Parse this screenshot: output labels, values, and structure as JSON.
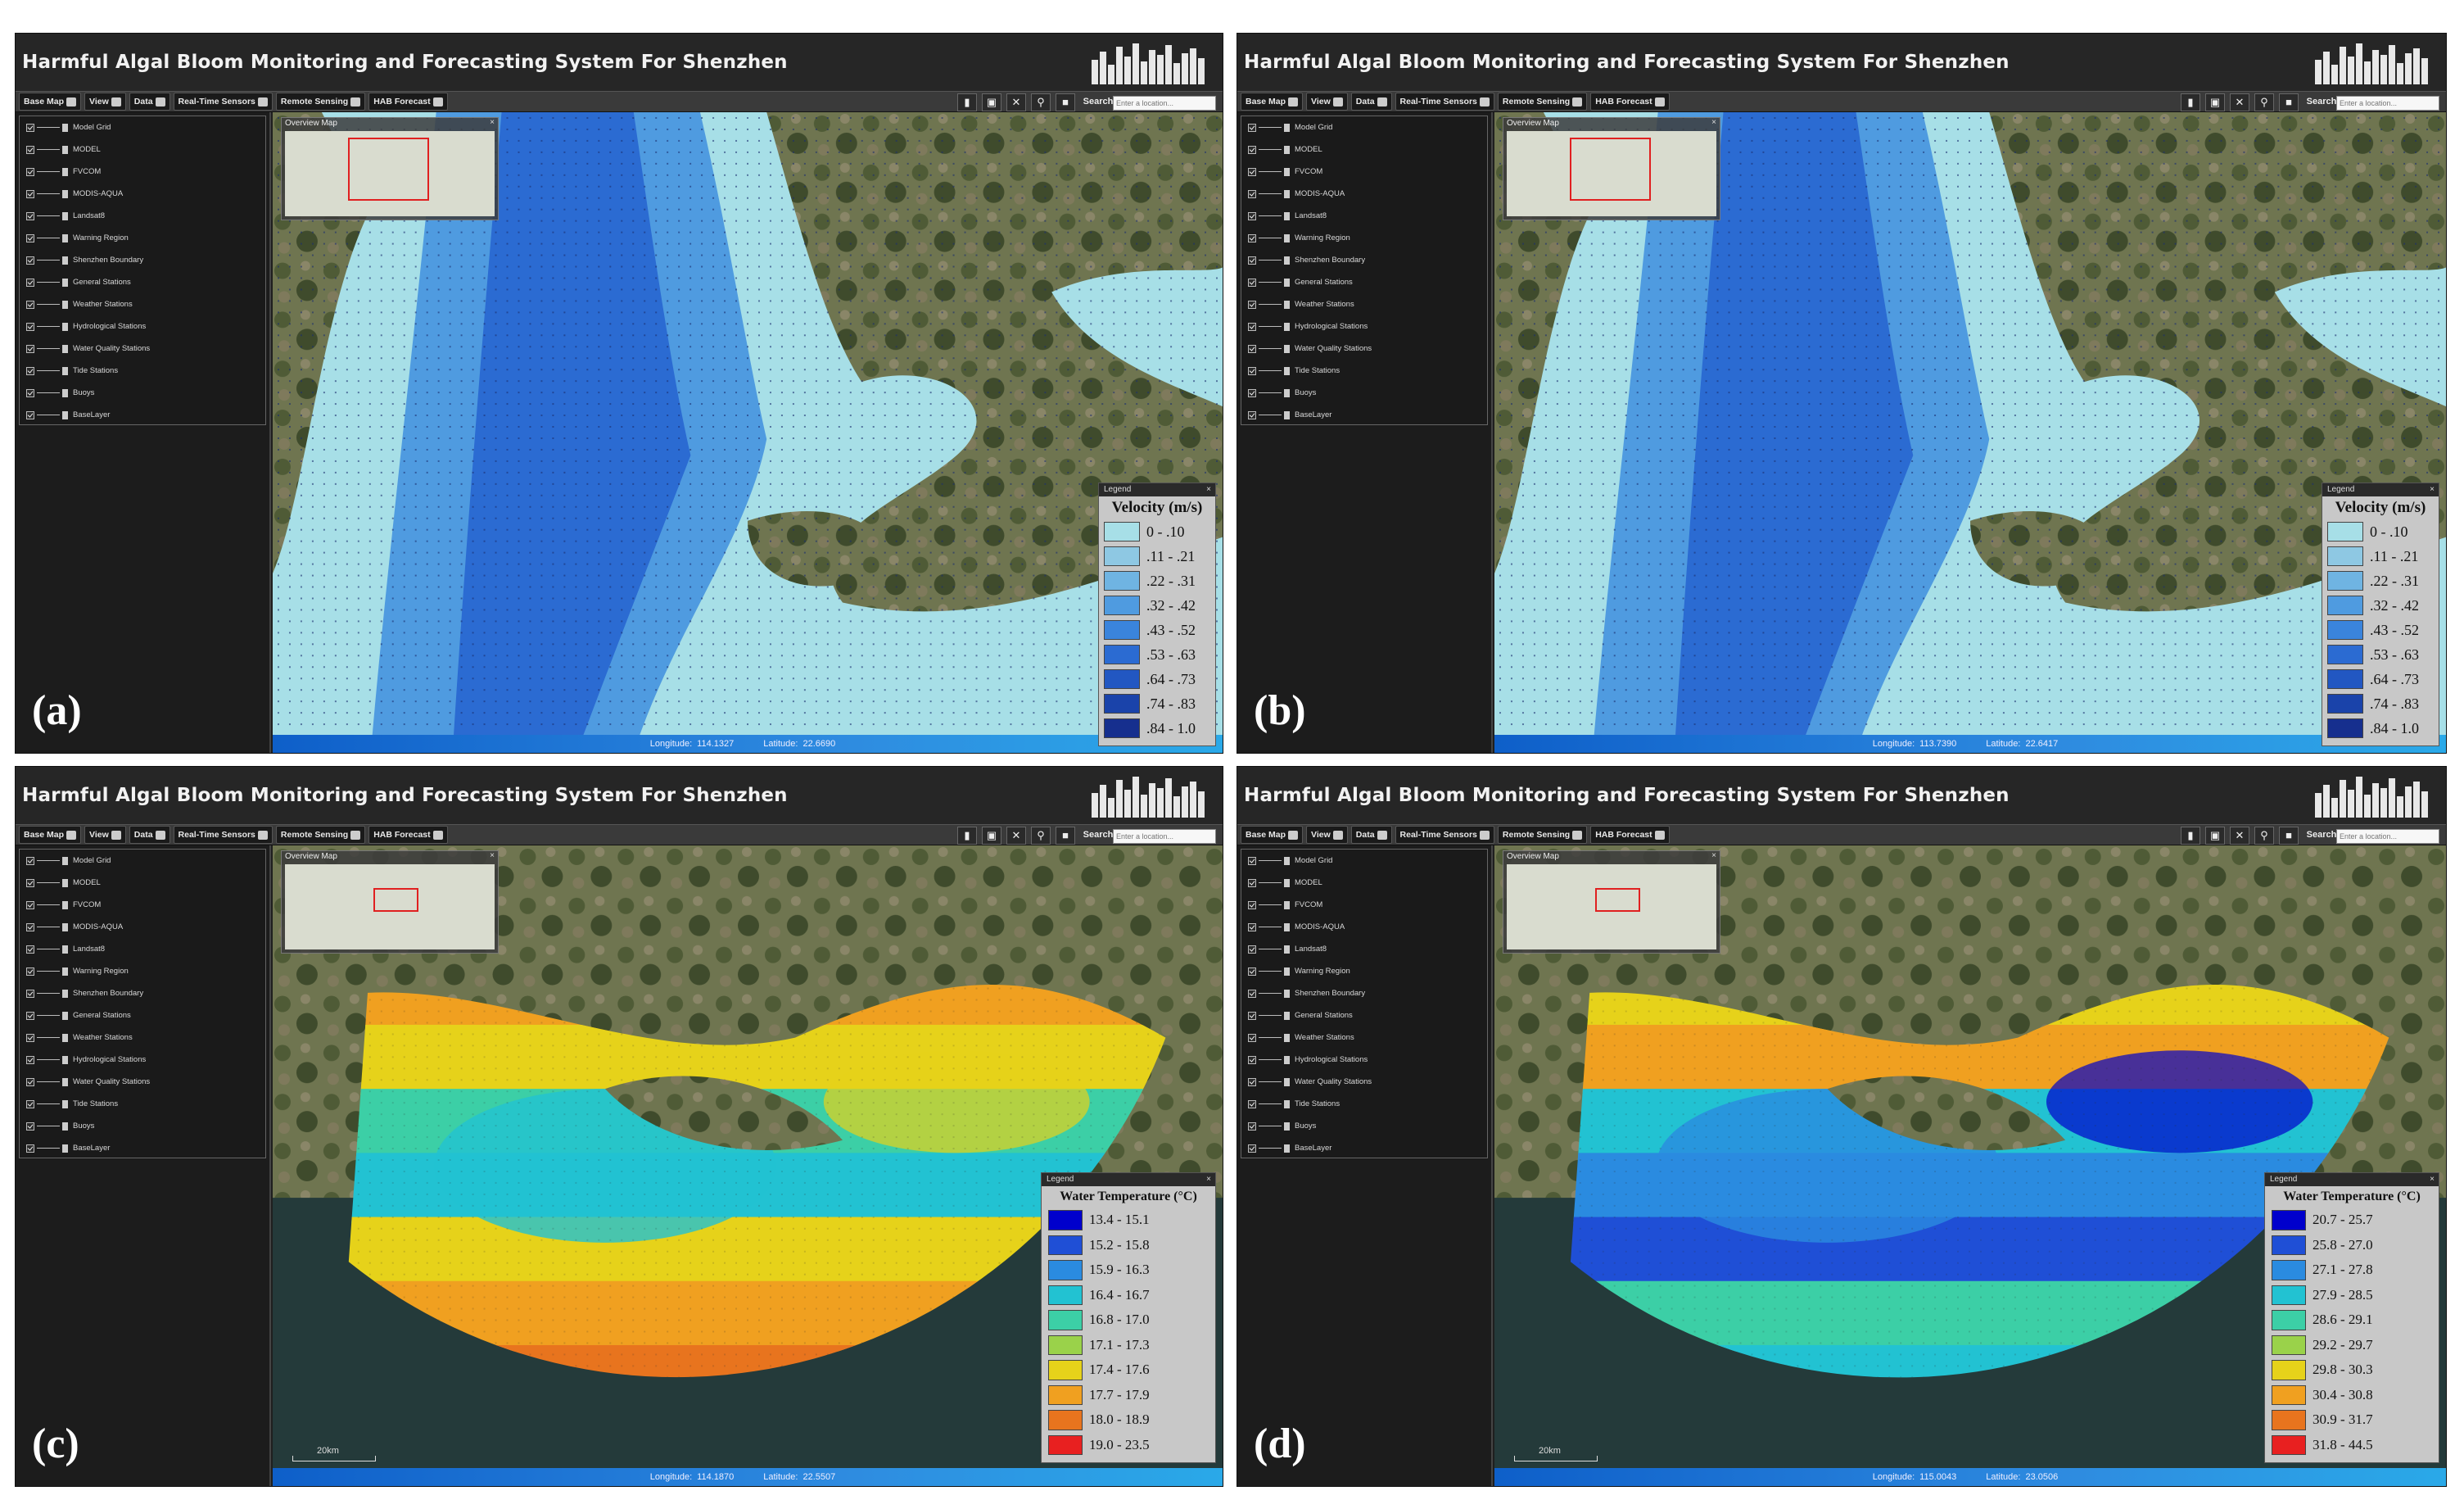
{
  "app": {
    "title": "Harmful Algal Bloom Monitoring and Forecasting System For Shenzhen",
    "toolbar": [
      "Base Map",
      "View",
      "Data",
      "Real-Time Sensors",
      "Remote Sensing",
      "HAB Forecast"
    ],
    "tools": [
      "chart-icon",
      "camera-icon",
      "tools-icon",
      "zoom-icon",
      "stop-icon"
    ],
    "search_label": "Search:",
    "search_placeholder": "Enter a location...",
    "layers": [
      "Model Grid",
      "MODEL",
      "FVCOM",
      "MODIS-AQUA",
      "Landsat8",
      "Warning Region",
      "Shenzhen Boundary",
      "General Stations",
      "Weather Stations",
      "Hydrological Stations",
      "Water Quality Stations",
      "Tide Stations",
      "Buoys",
      "BaseLayer"
    ],
    "overview_title": "Overview Map",
    "legend_header": "Legend",
    "longitude_label": "Longitude:",
    "latitude_label": "Latitude:"
  },
  "panels": [
    {
      "tag": "(a)",
      "longitude": "114.1327",
      "latitude": "22.6690",
      "legend_title": "Velocity (m/s)",
      "legend_items": [
        {
          "label": "0 - .10",
          "color": "#a7dfe7"
        },
        {
          "label": ".11 - .21",
          "color": "#8ec8e3"
        },
        {
          "label": ".22 - .31",
          "color": "#6fb4e2"
        },
        {
          "label": ".32 - .42",
          "color": "#4f9be0"
        },
        {
          "label": ".43 - .52",
          "color": "#3a84dc"
        },
        {
          "label": ".53 - .63",
          "color": "#2b6bd2"
        },
        {
          "label": ".64 - .73",
          "color": "#2257c2"
        },
        {
          "label": ".74 - .83",
          "color": "#1a43aa"
        },
        {
          "label": ".84 - 1.0",
          "color": "#162f8e"
        }
      ]
    },
    {
      "tag": "(b)",
      "longitude": "113.7390",
      "latitude": "22.6417",
      "legend_title": "Velocity (m/s)",
      "legend_items": [
        {
          "label": "0 - .10",
          "color": "#a7dfe7"
        },
        {
          "label": ".11 - .21",
          "color": "#8ec8e3"
        },
        {
          "label": ".22 - .31",
          "color": "#6fb4e2"
        },
        {
          "label": ".32 - .42",
          "color": "#4f9be0"
        },
        {
          "label": ".43 - .52",
          "color": "#3a84dc"
        },
        {
          "label": ".53 - .63",
          "color": "#2b6bd2"
        },
        {
          "label": ".64 - .73",
          "color": "#2257c2"
        },
        {
          "label": ".74 - .83",
          "color": "#1a43aa"
        },
        {
          "label": ".84 - 1.0",
          "color": "#162f8e"
        }
      ]
    },
    {
      "tag": "(c)",
      "longitude": "114.1870",
      "latitude": "22.5507",
      "scale": "20km",
      "legend_title": "Water Temperature (°C)",
      "legend_items": [
        {
          "label": "13.4 - 15.1",
          "color": "#0000cc"
        },
        {
          "label": "15.2 - 15.8",
          "color": "#1f4fd6"
        },
        {
          "label": "15.9 - 16.3",
          "color": "#2a8be0"
        },
        {
          "label": "16.4 - 16.7",
          "color": "#22c2d2"
        },
        {
          "label": "16.8 - 17.0",
          "color": "#3ccfa6"
        },
        {
          "label": "17.1 - 17.3",
          "color": "#9ad24a"
        },
        {
          "label": "17.4 - 17.6",
          "color": "#e6d21a"
        },
        {
          "label": "17.7 - 17.9",
          "color": "#f0a020"
        },
        {
          "label": "18.0 - 18.9",
          "color": "#e8741e"
        },
        {
          "label": "19.0 - 23.5",
          "color": "#e82020"
        }
      ]
    },
    {
      "tag": "(d)",
      "longitude": "115.0043",
      "latitude": "23.0506",
      "scale": "20km",
      "legend_title": "Water Temperature (°C)",
      "legend_items": [
        {
          "label": "20.7 - 25.7",
          "color": "#0000cc"
        },
        {
          "label": "25.8 - 27.0",
          "color": "#1f4fd6"
        },
        {
          "label": "27.1 - 27.8",
          "color": "#2a8be0"
        },
        {
          "label": "27.9 - 28.5",
          "color": "#22c2d2"
        },
        {
          "label": "28.6 - 29.1",
          "color": "#3ccfa6"
        },
        {
          "label": "29.2 - 29.7",
          "color": "#9ad24a"
        },
        {
          "label": "29.8 - 30.3",
          "color": "#e6d21a"
        },
        {
          "label": "30.4 - 30.8",
          "color": "#f0a020"
        },
        {
          "label": "30.9 - 31.7",
          "color": "#e8741e"
        },
        {
          "label": "31.8 - 44.5",
          "color": "#e82020"
        }
      ]
    }
  ]
}
